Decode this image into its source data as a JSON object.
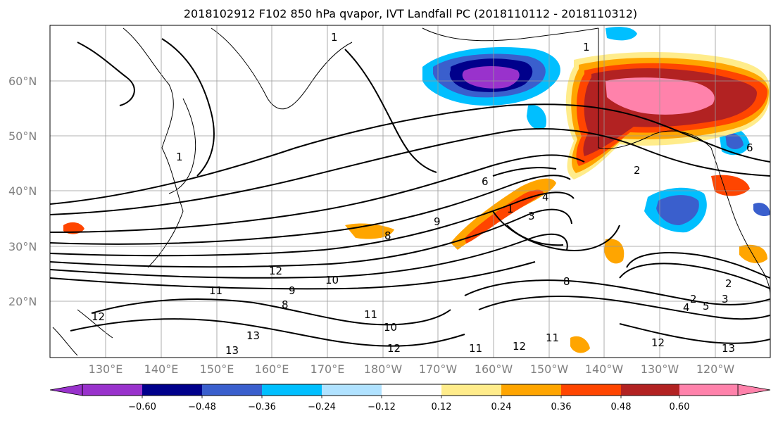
{
  "title": "2018102912 F102 850 hPa qvapor, IVT Landfall PC (2018110112 - 2018110312)",
  "lat_labels": [
    "60°N",
    "50°N",
    "40°N",
    "30°N",
    "20°N"
  ],
  "lon_labels": [
    "130°E",
    "140°E",
    "150°E",
    "160°E",
    "170°E",
    "180°W",
    "170°W",
    "160°W",
    "150°W",
    "140°W",
    "130°W",
    "120°W"
  ],
  "colorbar": {
    "ticks": [
      "−0.60",
      "−0.48",
      "−0.36",
      "−0.24",
      "−0.12",
      "0.12",
      "0.24",
      "0.36",
      "0.48",
      "0.60"
    ],
    "colors": [
      "#9932cc",
      "#00008b",
      "#3a5fcd",
      "#00bfff",
      "#b0e2ff",
      "#ffffff",
      "#ffec8b",
      "#ffa500",
      "#ff4500",
      "#b22222",
      "#ff82ab"
    ]
  },
  "contour_labels": [
    "1",
    "1",
    "1",
    "1",
    "2",
    "2",
    "2",
    "3",
    "3",
    "4",
    "4",
    "5",
    "6",
    "6",
    "8",
    "8",
    "8",
    "9",
    "9",
    "10",
    "10",
    "11",
    "11",
    "11",
    "11",
    "12",
    "12",
    "12",
    "12",
    "12",
    "13",
    "13",
    "13"
  ]
}
